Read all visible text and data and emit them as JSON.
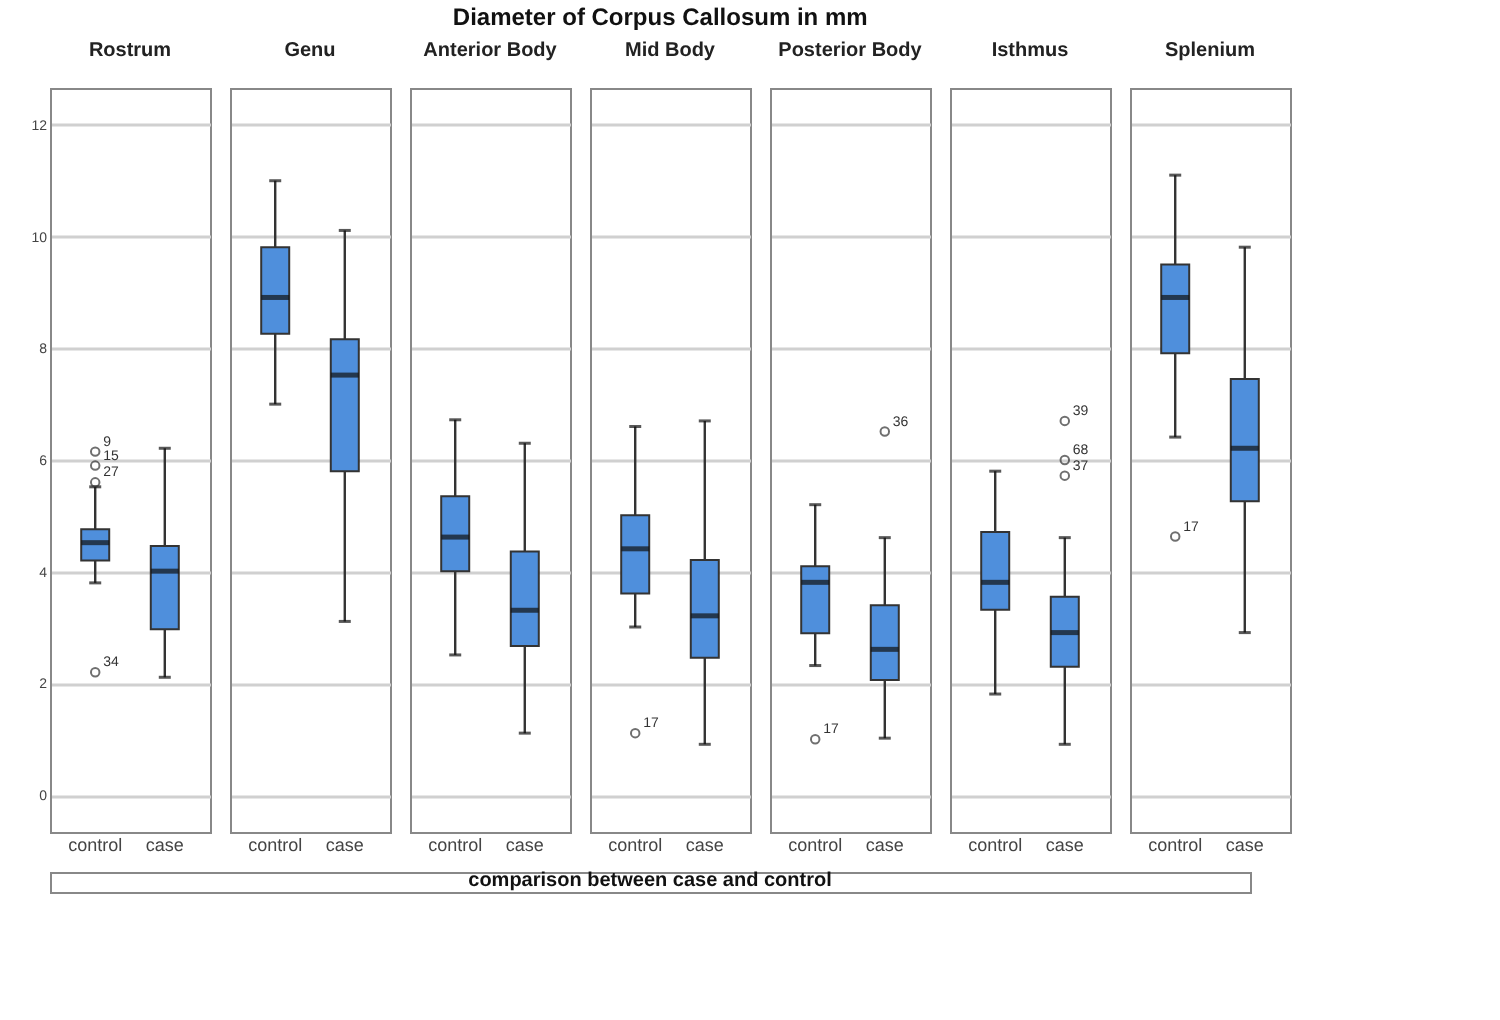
{
  "chart_data": [
    {
      "type": "box",
      "title": "Rostrum",
      "categories": [
        "control",
        "case"
      ],
      "ylim": [
        -0.66,
        12.66
      ],
      "yticks": [
        0,
        2,
        4,
        6,
        8,
        10,
        12
      ],
      "grid": "y",
      "legend": false,
      "series": [
        {
          "color": "#4f8fdc",
          "boxes": [
            {
              "low": 3.8,
              "q1": 4.2,
              "median": 4.52,
              "q3": 4.76,
              "high": 5.52,
              "outliers": [
                6.15,
                5.9,
                5.6,
                2.2
              ]
            },
            {
              "low": 2.11,
              "q1": 2.97,
              "median": 4.01,
              "q3": 4.46,
              "high": 6.21
            }
          ]
        }
      ],
      "annotations": [
        "9",
        "15",
        "27",
        "34"
      ]
    },
    {
      "type": "box",
      "title": "Genu",
      "categories": [
        "control",
        "case"
      ],
      "ylim": [
        -0.66,
        12.66
      ],
      "yticks": [
        0,
        2,
        4,
        6,
        8,
        10,
        12
      ],
      "grid": "y",
      "legend": false,
      "tick_labels": "x",
      "series": [
        {
          "color": "#4f8fdc",
          "boxes": [
            {
              "low": 7.0,
              "q1": 8.26,
              "median": 8.91,
              "q3": 9.81,
              "high": 11.0
            },
            {
              "low": 3.11,
              "q1": 5.8,
              "median": 7.52,
              "q3": 8.16,
              "high": 10.11
            }
          ]
        }
      ]
    },
    {
      "type": "box",
      "title": "Anterior Body",
      "categories": [
        "control",
        "case"
      ],
      "ylim": [
        -0.66,
        12.66
      ],
      "yticks": [
        0,
        2,
        4,
        6,
        8,
        10,
        12
      ],
      "grid": "y",
      "legend": false,
      "tick_labels": "x",
      "series": [
        {
          "color": "#4f8fdc",
          "boxes": [
            {
              "low": 2.51,
              "q1": 4.01,
              "median": 4.62,
              "q3": 5.35,
              "high": 6.72
            },
            {
              "low": 1.11,
              "q1": 2.67,
              "median": 3.31,
              "q3": 4.36,
              "high": 6.3
            }
          ]
        }
      ]
    },
    {
      "type": "box",
      "title": "Mid Body",
      "xlabel": "comparison between case and control",
      "categories": [
        "control",
        "case"
      ],
      "ylim": [
        -0.66,
        12.66
      ],
      "yticks": [
        0,
        2,
        4,
        6,
        8,
        10,
        12
      ],
      "grid": "y",
      "legend": false,
      "tick_labels": "x",
      "series": [
        {
          "color": "#4f8fdc",
          "boxes": [
            {
              "low": 3.01,
              "q1": 3.61,
              "median": 4.41,
              "q3": 5.01,
              "high": 6.6,
              "outliers": [
                1.11
              ]
            },
            {
              "low": 0.91,
              "q1": 2.46,
              "median": 3.21,
              "q3": 4.21,
              "high": 6.7
            }
          ]
        }
      ],
      "annotations": [
        "Diameter of Corpus Callosum in mm",
        "17"
      ]
    },
    {
      "type": "box",
      "title": "Posterior Body",
      "categories": [
        "control",
        "case"
      ],
      "ylim": [
        -0.66,
        12.66
      ],
      "yticks": [
        0,
        2,
        4,
        6,
        8,
        10,
        12
      ],
      "grid": "y",
      "legend": false,
      "tick_labels": "x",
      "series": [
        {
          "color": "#4f8fdc",
          "boxes": [
            {
              "low": 2.32,
              "q1": 2.9,
              "median": 3.81,
              "q3": 4.1,
              "high": 5.2,
              "outliers": [
                1.0
              ]
            },
            {
              "low": 1.02,
              "q1": 2.06,
              "median": 2.61,
              "q3": 3.4,
              "high": 4.61,
              "outliers": [
                6.51
              ]
            }
          ]
        }
      ],
      "annotations": [
        "17",
        "36"
      ]
    },
    {
      "type": "box",
      "title": "Isthmus",
      "categories": [
        "control",
        "case"
      ],
      "ylim": [
        -0.66,
        12.66
      ],
      "yticks": [
        0,
        2,
        4,
        6,
        8,
        10,
        12
      ],
      "grid": "y",
      "legend": false,
      "tick_labels": "x",
      "series": [
        {
          "color": "#4f8fdc",
          "boxes": [
            {
              "low": 1.81,
              "q1": 3.32,
              "median": 3.81,
              "q3": 4.71,
              "high": 5.8
            },
            {
              "low": 0.91,
              "q1": 2.3,
              "median": 2.91,
              "q3": 3.55,
              "high": 4.61,
              "outliers": [
                6.7,
                6.0,
                5.72
              ]
            }
          ]
        }
      ],
      "annotations": [
        "39",
        "68",
        "37"
      ]
    },
    {
      "type": "box",
      "title": "Splenium",
      "categories": [
        "control",
        "case"
      ],
      "ylim": [
        -0.66,
        12.66
      ],
      "yticks": [
        0,
        2,
        4,
        6,
        8,
        10,
        12
      ],
      "grid": "y",
      "legend": false,
      "tick_labels": "x",
      "series": [
        {
          "color": "#4f8fdc",
          "boxes": [
            {
              "low": 6.41,
              "q1": 7.91,
              "median": 8.91,
              "q3": 9.5,
              "high": 11.1,
              "outliers": [
                4.63
              ]
            },
            {
              "low": 2.91,
              "q1": 5.26,
              "median": 6.21,
              "q3": 7.45,
              "high": 9.81
            }
          ]
        }
      ],
      "annotations": [
        "17"
      ]
    }
  ]
}
